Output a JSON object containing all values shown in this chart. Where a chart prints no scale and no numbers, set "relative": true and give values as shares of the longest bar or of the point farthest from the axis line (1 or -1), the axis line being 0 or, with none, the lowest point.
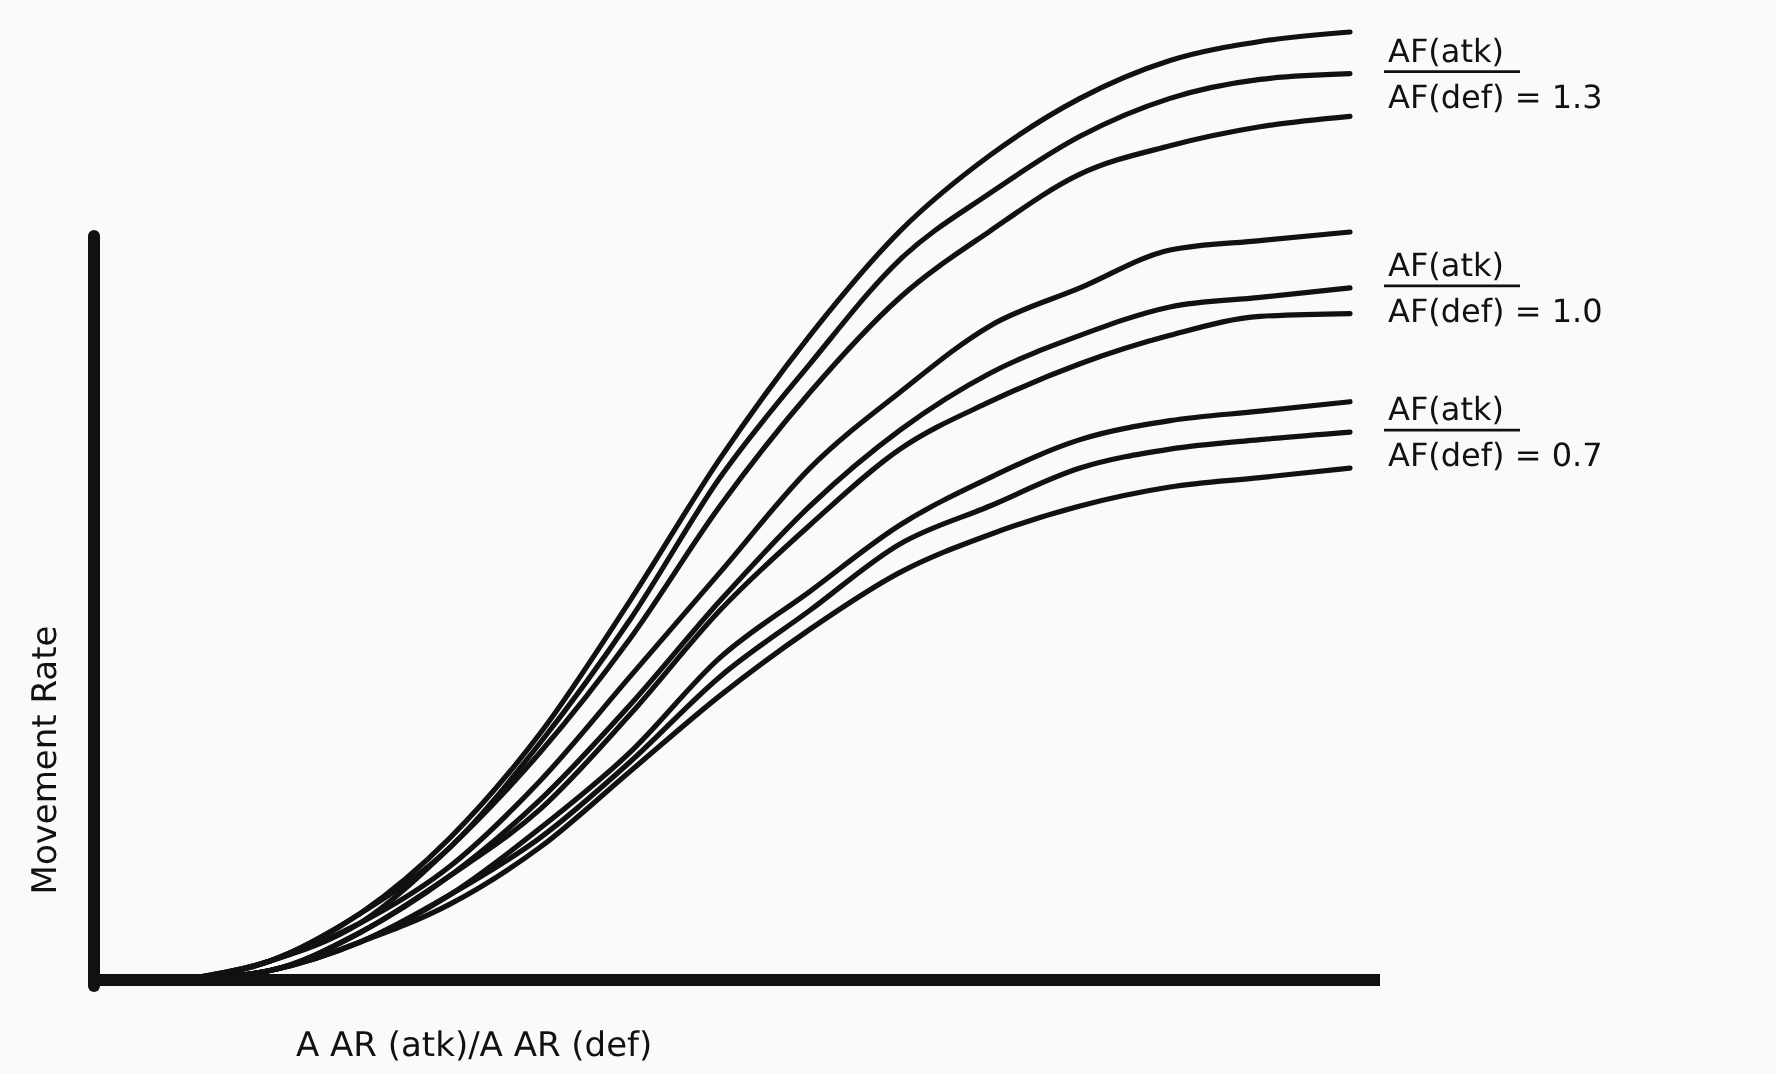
{
  "chart_data": {
    "type": "line",
    "relative": true,
    "xlabel": "A AR (atk)/A AR (def)",
    "ylabel": "Movement Rate",
    "marker": "none",
    "categories": [
      null,
      null,
      null,
      null,
      null,
      null,
      null,
      null,
      null,
      null,
      null,
      null,
      null,
      null
    ],
    "series": [
      {
        "color": "#111111",
        "values": [
          0,
          0.02,
          0.07,
          0.15,
          0.26,
          0.4,
          0.55,
          0.68,
          0.79,
          0.87,
          0.93,
          0.97,
          0.99,
          1
        ]
      },
      {
        "color": "#111111",
        "values": [
          0,
          0.02,
          0.07,
          0.14,
          0.25,
          0.38,
          0.53,
          0.65,
          0.76,
          0.83,
          0.89,
          0.93,
          0.95,
          0.956
        ]
      },
      {
        "color": "#111111",
        "values": [
          0,
          0.02,
          0.06,
          0.14,
          0.24,
          0.36,
          0.5,
          0.62,
          0.72,
          0.79,
          0.85,
          0.88,
          0.9,
          0.911
        ]
      },
      {
        "color": "#111111",
        "values": [
          0,
          0.02,
          0.06,
          0.12,
          0.21,
          0.32,
          0.43,
          0.54,
          0.62,
          0.69,
          0.73,
          0.77,
          0.78,
          0.789
        ]
      },
      {
        "color": "#111111",
        "values": [
          0,
          0.01,
          0.05,
          0.11,
          0.19,
          0.29,
          0.4,
          0.5,
          0.58,
          0.64,
          0.68,
          0.71,
          0.72,
          0.73
        ]
      },
      {
        "color": "#111111",
        "values": [
          0,
          0.01,
          0.05,
          0.11,
          0.18,
          0.28,
          0.39,
          0.48,
          0.56,
          0.61,
          0.65,
          0.68,
          0.7,
          0.703
        ]
      },
      {
        "color": "#111111",
        "values": [
          0,
          0.01,
          0.04,
          0.09,
          0.16,
          0.24,
          0.34,
          0.41,
          0.48,
          0.53,
          0.57,
          0.59,
          0.6,
          0.61
        ]
      },
      {
        "color": "#111111",
        "values": [
          0,
          0.01,
          0.04,
          0.09,
          0.15,
          0.23,
          0.32,
          0.39,
          0.46,
          0.5,
          0.54,
          0.56,
          0.57,
          0.578
        ]
      },
      {
        "color": "#111111",
        "values": [
          0,
          0.01,
          0.04,
          0.08,
          0.14,
          0.22,
          0.3,
          0.37,
          0.43,
          0.47,
          0.5,
          0.52,
          0.53,
          0.54
        ]
      }
    ],
    "annotations": [
      "AF(atk)",
      "AF(def) = 1.3",
      "AF(atk)",
      "AF(def) = 1.0",
      "AF(atk)",
      "AF(def) = 0.7"
    ]
  }
}
